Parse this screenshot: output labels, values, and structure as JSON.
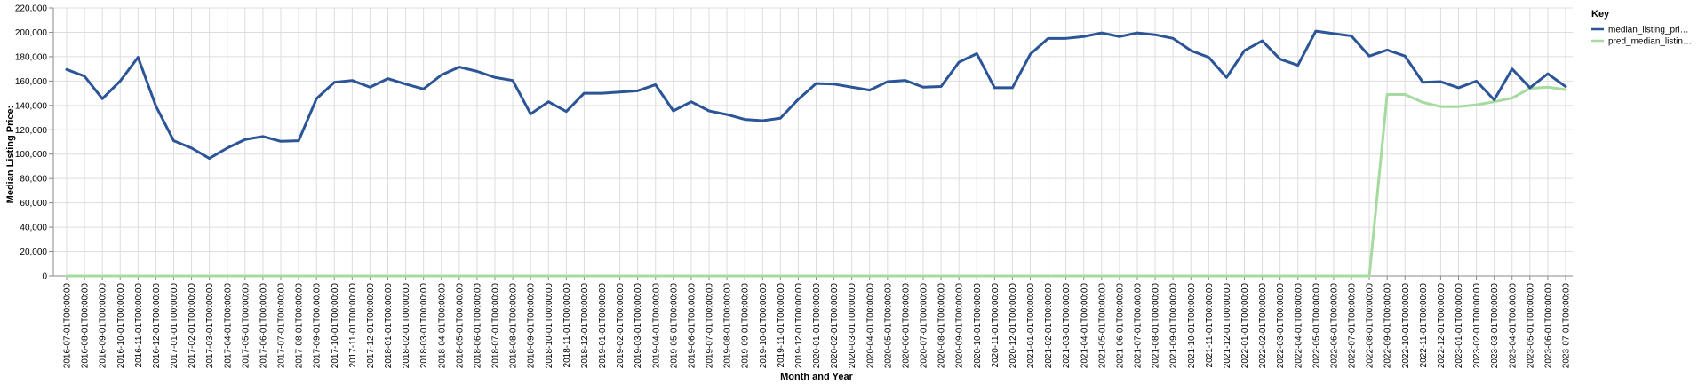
{
  "chart_data": {
    "type": "line",
    "xlabel": "Month and Year",
    "ylabel": "Median Listing Price:",
    "ylim": [
      0,
      220000
    ],
    "y_ticks": [
      0,
      20000,
      40000,
      60000,
      80000,
      100000,
      120000,
      140000,
      160000,
      180000,
      200000,
      220000
    ],
    "y_tick_labels": [
      "0",
      "20,000",
      "40,000",
      "60,000",
      "80,000",
      "100,000",
      "120,000",
      "140,000",
      "160,000",
      "180,000",
      "200,000",
      "220,000"
    ],
    "grid": true,
    "legend": {
      "title": "Key",
      "position": "top-right",
      "entries": [
        {
          "label": "median_listing_pri…",
          "color": "#2b5597"
        },
        {
          "label": "pred_median_listin…",
          "color": "#a6dba0"
        }
      ]
    },
    "x": [
      "2016-07-01T00:00:00",
      "2016-08-01T00:00:00",
      "2016-09-01T00:00:00",
      "2016-10-01T00:00:00",
      "2016-11-01T00:00:00",
      "2016-12-01T00:00:00",
      "2017-01-01T00:00:00",
      "2017-02-01T00:00:00",
      "2017-03-01T00:00:00",
      "2017-04-01T00:00:00",
      "2017-05-01T00:00:00",
      "2017-06-01T00:00:00",
      "2017-07-01T00:00:00",
      "2017-08-01T00:00:00",
      "2017-09-01T00:00:00",
      "2017-10-01T00:00:00",
      "2017-11-01T00:00:00",
      "2017-12-01T00:00:00",
      "2018-01-01T00:00:00",
      "2018-02-01T00:00:00",
      "2018-03-01T00:00:00",
      "2018-04-01T00:00:00",
      "2018-05-01T00:00:00",
      "2018-06-01T00:00:00",
      "2018-07-01T00:00:00",
      "2018-08-01T00:00:00",
      "2018-09-01T00:00:00",
      "2018-10-01T00:00:00",
      "2018-11-01T00:00:00",
      "2018-12-01T00:00:00",
      "2019-01-01T00:00:00",
      "2019-02-01T00:00:00",
      "2019-03-01T00:00:00",
      "2019-04-01T00:00:00",
      "2019-05-01T00:00:00",
      "2019-06-01T00:00:00",
      "2019-07-01T00:00:00",
      "2019-08-01T00:00:00",
      "2019-09-01T00:00:00",
      "2019-10-01T00:00:00",
      "2019-11-01T00:00:00",
      "2019-12-01T00:00:00",
      "2020-01-01T00:00:00",
      "2020-02-01T00:00:00",
      "2020-03-01T00:00:00",
      "2020-04-01T00:00:00",
      "2020-05-01T00:00:00",
      "2020-06-01T00:00:00",
      "2020-07-01T00:00:00",
      "2020-08-01T00:00:00",
      "2020-09-01T00:00:00",
      "2020-10-01T00:00:00",
      "2020-11-01T00:00:00",
      "2020-12-01T00:00:00",
      "2021-01-01T00:00:00",
      "2021-02-01T00:00:00",
      "2021-03-01T00:00:00",
      "2021-04-01T00:00:00",
      "2021-05-01T00:00:00",
      "2021-06-01T00:00:00",
      "2021-07-01T00:00:00",
      "2021-08-01T00:00:00",
      "2021-09-01T00:00:00",
      "2021-10-01T00:00:00",
      "2021-11-01T00:00:00",
      "2021-12-01T00:00:00",
      "2022-01-01T00:00:00",
      "2022-02-01T00:00:00",
      "2022-03-01T00:00:00",
      "2022-04-01T00:00:00",
      "2022-05-01T00:00:00",
      "2022-06-01T00:00:00",
      "2022-07-01T00:00:00",
      "2022-08-01T00:00:00",
      "2022-09-01T00:00:00",
      "2022-10-01T00:00:00",
      "2022-11-01T00:00:00",
      "2022-12-01T00:00:00",
      "2023-01-01T00:00:00",
      "2023-02-01T00:00:00",
      "2023-03-01T00:00:00",
      "2023-04-01T00:00:00",
      "2023-05-01T00:00:00",
      "2023-06-01T00:00:00",
      "2023-07-01T00:00:00"
    ],
    "series": [
      {
        "name": "median_listing_pri…",
        "color": "#2b5597",
        "values": [
          169500,
          164000,
          145500,
          160000,
          179500,
          139500,
          111000,
          105000,
          96500,
          105000,
          112000,
          114500,
          110500,
          111000,
          145500,
          159000,
          160500,
          155000,
          162000,
          157500,
          153500,
          165000,
          171500,
          168000,
          163000,
          160500,
          133000,
          143000,
          135000,
          150000,
          150000,
          151000,
          152000,
          157000,
          135500,
          143000,
          135500,
          132500,
          128500,
          127500,
          129500,
          145000,
          158000,
          157500,
          155000,
          152500,
          159500,
          160500,
          155000,
          155500,
          175500,
          182500,
          154500,
          154500,
          182000,
          195000,
          195000,
          196500,
          199500,
          196500,
          199500,
          198000,
          195000,
          185000,
          179500,
          163000,
          185000,
          193000,
          178000,
          173000,
          201000,
          199000,
          197000,
          180500,
          185500,
          180500,
          159000,
          159500,
          154500,
          160000,
          144500,
          170000,
          154500,
          166000,
          155500
        ]
      },
      {
        "name": "pred_median_listin…",
        "color": "#a6dba0",
        "values": [
          0,
          0,
          0,
          0,
          0,
          0,
          0,
          0,
          0,
          0,
          0,
          0,
          0,
          0,
          0,
          0,
          0,
          0,
          0,
          0,
          0,
          0,
          0,
          0,
          0,
          0,
          0,
          0,
          0,
          0,
          0,
          0,
          0,
          0,
          0,
          0,
          0,
          0,
          0,
          0,
          0,
          0,
          0,
          0,
          0,
          0,
          0,
          0,
          0,
          0,
          0,
          0,
          0,
          0,
          0,
          0,
          0,
          0,
          0,
          0,
          0,
          0,
          0,
          0,
          0,
          0,
          0,
          0,
          0,
          0,
          0,
          0,
          0,
          0,
          149000,
          149000,
          142500,
          139000,
          139000,
          140500,
          143000,
          146000,
          154000,
          155000,
          153000
        ]
      }
    ]
  }
}
